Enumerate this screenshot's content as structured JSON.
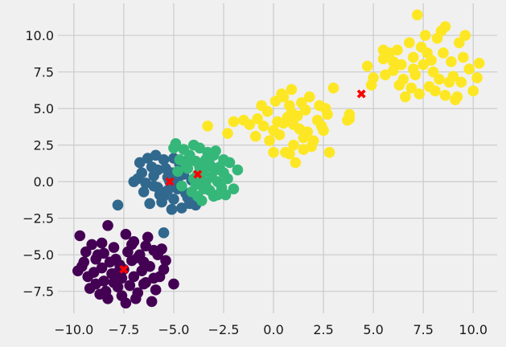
{
  "chart_data": {
    "type": "scatter",
    "title": "",
    "xlabel": "",
    "ylabel": "",
    "xlim": [
      -10.8,
      11.2
    ],
    "ylim": [
      -9.0,
      12.2
    ],
    "grid": true,
    "xticks": [
      -10.0,
      -7.5,
      -5.0,
      -2.5,
      0.0,
      2.5,
      5.0,
      7.5,
      10.0
    ],
    "yticks": [
      -7.5,
      -5.0,
      -2.5,
      0.0,
      2.5,
      5.0,
      7.5,
      10.0
    ],
    "xtick_labels": [
      "−10.0",
      "−7.5",
      "−5.0",
      "−2.5",
      "0.0",
      "2.5",
      "5.0",
      "7.5",
      "10.0"
    ],
    "ytick_labels": [
      "−7.5",
      "−5.0",
      "−2.5",
      "0.0",
      "2.5",
      "5.0",
      "7.5",
      "10.0"
    ],
    "series": [
      {
        "color": "#440154",
        "points": [
          [
            -7.5,
            -6.0
          ],
          [
            -8.2,
            -5.5
          ],
          [
            -7.0,
            -6.5
          ],
          [
            -6.8,
            -5.2
          ],
          [
            -8.5,
            -6.8
          ],
          [
            -7.8,
            -7.2
          ],
          [
            -6.5,
            -7.0
          ],
          [
            -8.8,
            -5.0
          ],
          [
            -7.3,
            -4.8
          ],
          [
            -6.2,
            -5.8
          ],
          [
            -9.0,
            -6.2
          ],
          [
            -8.0,
            -4.5
          ],
          [
            -7.6,
            -7.8
          ],
          [
            -6.9,
            -8.0
          ],
          [
            -8.4,
            -7.5
          ],
          [
            -6.0,
            -6.6
          ],
          [
            -9.5,
            -5.5
          ],
          [
            -9.3,
            -6.5
          ],
          [
            -7.1,
            -5.4
          ],
          [
            -8.1,
            -6.3
          ],
          [
            -7.7,
            -5.7
          ],
          [
            -6.6,
            -6.1
          ],
          [
            -8.6,
            -5.9
          ],
          [
            -7.2,
            -7.1
          ],
          [
            -5.8,
            -5.0
          ],
          [
            -5.5,
            -6.0
          ],
          [
            -6.4,
            -4.4
          ],
          [
            -8.9,
            -7.0
          ],
          [
            -9.7,
            -3.7
          ],
          [
            -8.3,
            -3.0
          ],
          [
            -7.4,
            -3.6
          ],
          [
            -6.3,
            -3.8
          ],
          [
            -5.6,
            -4.6
          ],
          [
            -5.0,
            -7.0
          ],
          [
            -9.8,
            -6.1
          ],
          [
            -9.1,
            -4.3
          ],
          [
            -8.7,
            -7.7
          ],
          [
            -6.1,
            -8.2
          ],
          [
            -7.4,
            -8.3
          ],
          [
            -5.9,
            -7.4
          ],
          [
            -9.4,
            -4.8
          ],
          [
            -8.0,
            -6.9
          ],
          [
            -6.7,
            -5.0
          ],
          [
            -7.9,
            -5.3
          ],
          [
            -8.6,
            -4.2
          ],
          [
            -7.0,
            -4.1
          ],
          [
            -6.0,
            -4.7
          ],
          [
            -5.4,
            -5.4
          ],
          [
            -9.2,
            -7.3
          ],
          [
            -7.6,
            -6.6
          ],
          [
            -6.4,
            -6.9
          ],
          [
            -8.3,
            -8.0
          ],
          [
            -7.8,
            -6.2
          ],
          [
            -6.8,
            -7.6
          ],
          [
            -9.6,
            -5.8
          ],
          [
            -8.9,
            -5.3
          ],
          [
            -5.7,
            -6.5
          ],
          [
            -6.5,
            -5.5
          ],
          [
            -7.1,
            -4.3
          ],
          [
            -8.5,
            -4.9
          ]
        ]
      },
      {
        "color": "#31688e",
        "points": [
          [
            -5.2,
            0.0
          ],
          [
            -5.8,
            0.8
          ],
          [
            -4.8,
            -0.5
          ],
          [
            -6.0,
            -0.3
          ],
          [
            -5.5,
            1.5
          ],
          [
            -4.5,
            0.5
          ],
          [
            -6.3,
            1.6
          ],
          [
            -5.0,
            -1.2
          ],
          [
            -4.2,
            -1.5
          ],
          [
            -6.6,
            0.6
          ],
          [
            -5.7,
            -0.9
          ],
          [
            -4.7,
            1.2
          ],
          [
            -5.3,
            0.3
          ],
          [
            -6.1,
            1.0
          ],
          [
            -5.9,
            1.8
          ],
          [
            -4.9,
            -0.2
          ],
          [
            -4.4,
            -0.8
          ],
          [
            -5.6,
            -1.4
          ],
          [
            -6.4,
            -0.1
          ],
          [
            -4.6,
            -1.8
          ],
          [
            -3.9,
            -1.6
          ],
          [
            -5.1,
            -1.9
          ],
          [
            -6.2,
            -1.5
          ],
          [
            -7.0,
            0.0
          ],
          [
            -7.8,
            -1.6
          ],
          [
            -5.4,
            0.9
          ],
          [
            -4.1,
            0.1
          ],
          [
            -6.7,
            1.3
          ],
          [
            -5.0,
            1.6
          ],
          [
            -3.8,
            -1.2
          ],
          [
            -6.8,
            0.2
          ],
          [
            -5.3,
            -0.6
          ],
          [
            -4.3,
            -1.1
          ],
          [
            -5.8,
            -0.4
          ],
          [
            -6.5,
            -0.7
          ],
          [
            -5.1,
            0.6
          ],
          [
            -4.8,
            0.2
          ],
          [
            -5.5,
            -1.0
          ],
          [
            -6.0,
            0.4
          ],
          [
            -4.6,
            1.4
          ],
          [
            -5.5,
            -3.5
          ],
          [
            -4.0,
            -1.4
          ]
        ]
      },
      {
        "color": "#35b779",
        "points": [
          [
            -3.8,
            0.5
          ],
          [
            -3.2,
            1.2
          ],
          [
            -4.2,
            1.8
          ],
          [
            -2.8,
            0.0
          ],
          [
            -3.5,
            -0.5
          ],
          [
            -4.0,
            0.2
          ],
          [
            -2.5,
            1.5
          ],
          [
            -3.0,
            -1.0
          ],
          [
            -4.5,
            2.2
          ],
          [
            -3.7,
            1.0
          ],
          [
            -2.9,
            0.8
          ],
          [
            -3.4,
            -0.2
          ],
          [
            -4.1,
            -0.7
          ],
          [
            -2.6,
            -0.4
          ],
          [
            -3.3,
            2.0
          ],
          [
            -3.9,
            1.4
          ],
          [
            -3.1,
            0.3
          ],
          [
            -2.7,
            1.0
          ],
          [
            -3.6,
            -1.3
          ],
          [
            -4.3,
            0.9
          ],
          [
            -2.3,
            0.2
          ],
          [
            -2.0,
            -0.5
          ],
          [
            -1.8,
            0.8
          ],
          [
            -3.0,
            1.8
          ],
          [
            -4.7,
            1.5
          ],
          [
            -5.0,
            2.3
          ],
          [
            -4.8,
            0.7
          ],
          [
            -2.4,
            -0.9
          ],
          [
            -3.5,
            0.7
          ],
          [
            -3.2,
            -0.6
          ],
          [
            -2.9,
            2.1
          ],
          [
            -4.0,
            2.5
          ],
          [
            -4.6,
            -0.3
          ],
          [
            -3.8,
            -1.0
          ],
          [
            -2.2,
            1.3
          ],
          [
            -3.7,
            2.3
          ],
          [
            -4.9,
            2.6
          ],
          [
            -3.4,
            1.5
          ],
          [
            -2.8,
            -0.9
          ],
          [
            -3.9,
            -0.2
          ],
          [
            -2.5,
            0.6
          ],
          [
            -4.4,
            1.2
          ],
          [
            -3.1,
            1.0
          ],
          [
            -3.6,
            0.1
          ]
        ]
      },
      {
        "color": "#fde725",
        "points": [
          [
            0.5,
            4.0
          ],
          [
            1.2,
            4.5
          ],
          [
            0.0,
            3.5
          ],
          [
            1.5,
            3.0
          ],
          [
            0.8,
            5.2
          ],
          [
            -0.3,
            4.8
          ],
          [
            1.8,
            5.8
          ],
          [
            2.2,
            4.2
          ],
          [
            0.3,
            3.2
          ],
          [
            1.0,
            2.5
          ],
          [
            -0.5,
            3.8
          ],
          [
            2.5,
            3.5
          ],
          [
            1.6,
            4.9
          ],
          [
            0.1,
            5.5
          ],
          [
            0.9,
            6.3
          ],
          [
            2.0,
            2.8
          ],
          [
            -0.8,
            4.3
          ],
          [
            1.3,
            3.6
          ],
          [
            0.6,
            2.0
          ],
          [
            1.9,
            2.4
          ],
          [
            2.7,
            4.6
          ],
          [
            -1.2,
            3.9
          ],
          [
            -1.5,
            4.2
          ],
          [
            2.8,
            2.0
          ],
          [
            3.0,
            6.4
          ],
          [
            3.8,
            4.6
          ],
          [
            1.1,
            1.3
          ],
          [
            0.4,
            6.0
          ],
          [
            -0.2,
            2.8
          ],
          [
            1.4,
            5.4
          ],
          [
            2.3,
            5.2
          ],
          [
            0.7,
            4.4
          ],
          [
            -0.6,
            5.2
          ],
          [
            1.7,
            3.4
          ],
          [
            0.2,
            4.1
          ],
          [
            2.4,
            3.8
          ],
          [
            -0.9,
            3.1
          ],
          [
            1.0,
            3.9
          ],
          [
            0.9,
            4.7
          ],
          [
            1.5,
            2.2
          ],
          [
            2.6,
            5.0
          ],
          [
            0.5,
            5.8
          ],
          [
            -2.3,
            3.3
          ],
          [
            -2.0,
            4.1
          ],
          [
            -3.3,
            3.8
          ],
          [
            3.7,
            4.2
          ],
          [
            0.0,
            2.0
          ],
          [
            0.8,
            1.9
          ],
          [
            7.5,
            8.0
          ],
          [
            8.0,
            7.5
          ],
          [
            7.0,
            8.5
          ],
          [
            6.5,
            7.0
          ],
          [
            8.5,
            8.8
          ],
          [
            7.8,
            6.5
          ],
          [
            6.8,
            9.5
          ],
          [
            9.0,
            7.2
          ],
          [
            8.2,
            9.8
          ],
          [
            6.0,
            8.2
          ],
          [
            9.5,
            8.5
          ],
          [
            7.3,
            6.0
          ],
          [
            8.8,
            6.8
          ],
          [
            6.2,
            9.0
          ],
          [
            7.6,
            10.0
          ],
          [
            9.3,
            9.5
          ],
          [
            5.6,
            7.3
          ],
          [
            6.6,
            5.8
          ],
          [
            5.5,
            8.4
          ],
          [
            8.4,
            10.3
          ],
          [
            9.8,
            7.7
          ],
          [
            10.2,
            7.1
          ],
          [
            10.0,
            6.2
          ],
          [
            9.2,
            5.8
          ],
          [
            8.6,
            5.9
          ],
          [
            7.2,
            11.4
          ],
          [
            8.6,
            10.6
          ],
          [
            9.1,
            5.6
          ],
          [
            6.0,
            7.6
          ],
          [
            5.0,
            7.1
          ],
          [
            4.9,
            6.6
          ],
          [
            5.5,
            9.0
          ],
          [
            7.1,
            7.3
          ],
          [
            7.9,
            8.3
          ],
          [
            8.3,
            7.0
          ],
          [
            6.9,
            6.4
          ],
          [
            7.4,
            9.2
          ],
          [
            9.6,
            10.0
          ],
          [
            6.4,
            8.0
          ],
          [
            8.9,
            8.2
          ],
          [
            7.0,
            7.7
          ],
          [
            5.8,
            8.8
          ],
          [
            10.3,
            8.1
          ],
          [
            7.7,
            8.8
          ],
          [
            6.3,
            6.6
          ],
          [
            8.1,
            6.2
          ],
          [
            9.4,
            6.8
          ],
          [
            4.7,
            7.9
          ],
          [
            3.8,
            4.3
          ]
        ]
      }
    ],
    "centers": {
      "color": "#ff0000",
      "points": [
        [
          -7.5,
          -6.0
        ],
        [
          -5.2,
          0.0
        ],
        [
          -3.8,
          0.5
        ],
        [
          4.4,
          6.0
        ]
      ]
    }
  }
}
